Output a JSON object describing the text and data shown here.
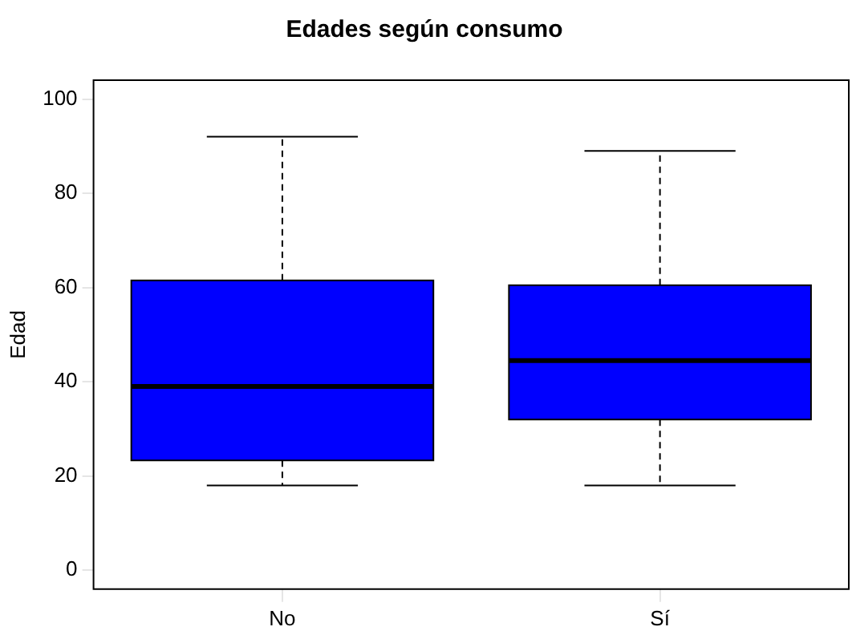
{
  "chart_data": {
    "type": "box",
    "title": "Edades según consumo",
    "ylabel": "Edad",
    "categories": [
      "No",
      "Sí"
    ],
    "series": [
      {
        "color": "#0000ff",
        "boxes": [
          {
            "low": 18,
            "q1": 23.3,
            "median": 39,
            "q3": 61.5,
            "high": 92
          },
          {
            "low": 18,
            "q1": 32,
            "median": 44.5,
            "q3": 60.5,
            "high": 89
          }
        ]
      }
    ],
    "ylim": [
      -4,
      104
    ],
    "yticks": [
      0,
      20,
      40,
      60,
      80,
      100
    ],
    "grid": false,
    "legend": false
  }
}
